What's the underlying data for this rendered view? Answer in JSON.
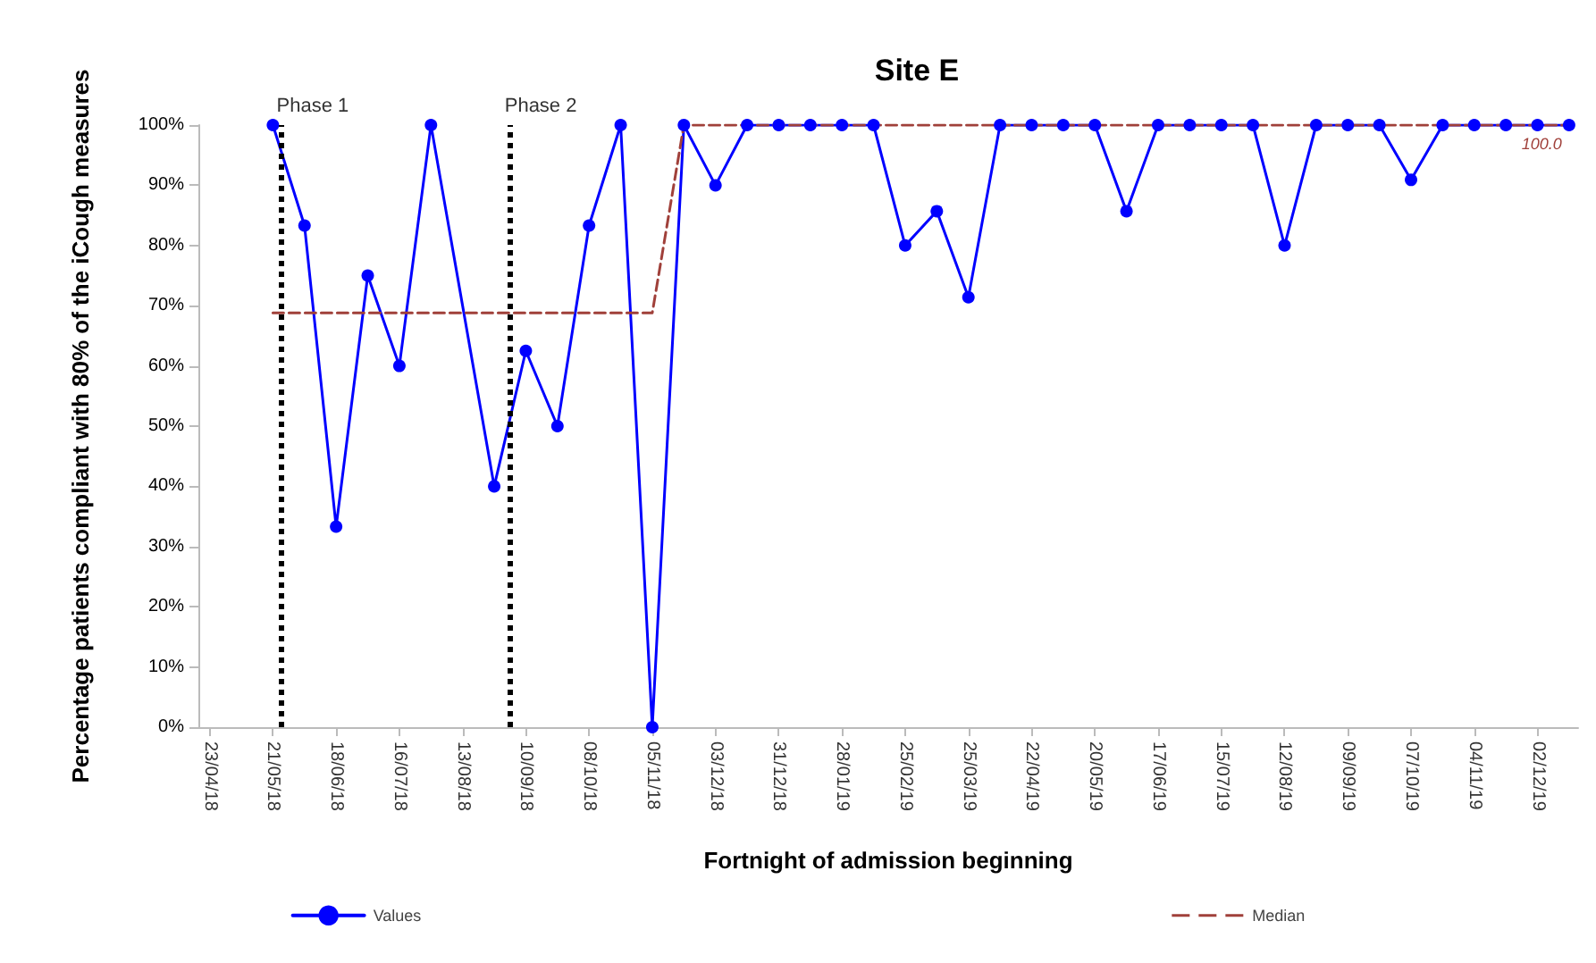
{
  "chart_data": {
    "type": "line",
    "title": "Site E",
    "xlabel": "Fortnight of admission beginning",
    "ylabel": "Percentage patients compliant with 80% of the iCough measures",
    "series": [
      {
        "name": "Values",
        "color": "#0000ff",
        "marker": "circle",
        "line_style": "solid",
        "x": [
          "2018-05-21",
          "2018-06-04",
          "2018-06-18",
          "2018-07-02",
          "2018-07-16",
          "2018-07-30",
          "2018-08-27",
          "2018-09-10",
          "2018-09-24",
          "2018-10-08",
          "2018-10-22",
          "2018-11-05",
          "2018-11-19",
          "2018-12-03",
          "2018-12-17",
          "2018-12-31",
          "2019-01-14",
          "2019-01-28",
          "2019-02-11",
          "2019-02-25",
          "2019-03-11",
          "2019-03-25",
          "2019-04-08",
          "2019-04-22",
          "2019-05-06",
          "2019-05-20",
          "2019-06-03",
          "2019-06-17",
          "2019-07-01",
          "2019-07-15",
          "2019-07-29",
          "2019-08-12",
          "2019-08-26",
          "2019-09-09",
          "2019-09-23",
          "2019-10-07",
          "2019-10-21",
          "2019-11-04",
          "2019-11-18",
          "2019-12-02",
          "2019-12-16"
        ],
        "values": [
          100,
          83.3,
          33.3,
          75,
          60,
          100,
          40,
          62.5,
          50,
          83.3,
          100,
          0,
          100,
          90,
          100,
          100,
          100,
          100,
          100,
          80,
          85.7,
          71.4,
          100,
          100,
          100,
          100,
          85.7,
          100,
          100,
          100,
          100,
          80,
          100,
          100,
          100,
          90.9,
          100,
          100,
          100,
          100,
          100
        ]
      },
      {
        "name": "Median",
        "color": "#a0403a",
        "marker": "none",
        "line_style": "dashed",
        "x": [
          "2018-05-21",
          "2018-11-05",
          "2018-11-19",
          "2019-12-16"
        ],
        "values": [
          68.8,
          68.8,
          100,
          100
        ]
      }
    ],
    "xlim": [
      "2018-04-18",
      "2019-12-20"
    ],
    "xticks": [
      {
        "value": "2018-04-23",
        "label": "23/04/18"
      },
      {
        "value": "2018-05-21",
        "label": "21/05/18"
      },
      {
        "value": "2018-06-18",
        "label": "18/06/18"
      },
      {
        "value": "2018-07-16",
        "label": "16/07/18"
      },
      {
        "value": "2018-08-13",
        "label": "13/08/18"
      },
      {
        "value": "2018-09-10",
        "label": "10/09/18"
      },
      {
        "value": "2018-10-08",
        "label": "08/10/18"
      },
      {
        "value": "2018-11-05",
        "label": "05/11/18"
      },
      {
        "value": "2018-12-03",
        "label": "03/12/18"
      },
      {
        "value": "2018-12-31",
        "label": "31/12/18"
      },
      {
        "value": "2019-01-28",
        "label": "28/01/19"
      },
      {
        "value": "2019-02-25",
        "label": "25/02/19"
      },
      {
        "value": "2019-03-25",
        "label": "25/03/19"
      },
      {
        "value": "2019-04-22",
        "label": "22/04/19"
      },
      {
        "value": "2019-05-20",
        "label": "20/05/19"
      },
      {
        "value": "2019-06-17",
        "label": "17/06/19"
      },
      {
        "value": "2019-07-15",
        "label": "15/07/19"
      },
      {
        "value": "2019-08-12",
        "label": "12/08/19"
      },
      {
        "value": "2019-09-09",
        "label": "09/09/19"
      },
      {
        "value": "2019-10-07",
        "label": "07/10/19"
      },
      {
        "value": "2019-11-04",
        "label": "04/11/19"
      },
      {
        "value": "2019-12-02",
        "label": "02/12/19"
      }
    ],
    "ylim": [
      0,
      100
    ],
    "yticks": [
      {
        "value": 0,
        "label": "0%"
      },
      {
        "value": 10,
        "label": "10%"
      },
      {
        "value": 20,
        "label": "20%"
      },
      {
        "value": 30,
        "label": "30%"
      },
      {
        "value": 40,
        "label": "40%"
      },
      {
        "value": 50,
        "label": "50%"
      },
      {
        "value": 60,
        "label": "60%"
      },
      {
        "value": 70,
        "label": "70%"
      },
      {
        "value": 80,
        "label": "80%"
      },
      {
        "value": 90,
        "label": "90%"
      },
      {
        "value": 100,
        "label": "100%"
      }
    ],
    "ref_lines": [
      {
        "axis": "x",
        "value": "2018-05-25",
        "label": "Phase 1",
        "color": "#000000",
        "line_style": "dotted"
      },
      {
        "axis": "x",
        "value": "2018-09-03",
        "label": "Phase 2",
        "color": "#000000",
        "line_style": "dotted"
      }
    ],
    "annotations": [
      {
        "text": "100.0",
        "x": "2019-12-16",
        "y": 100
      }
    ],
    "grid": false,
    "legend": "bottom"
  }
}
